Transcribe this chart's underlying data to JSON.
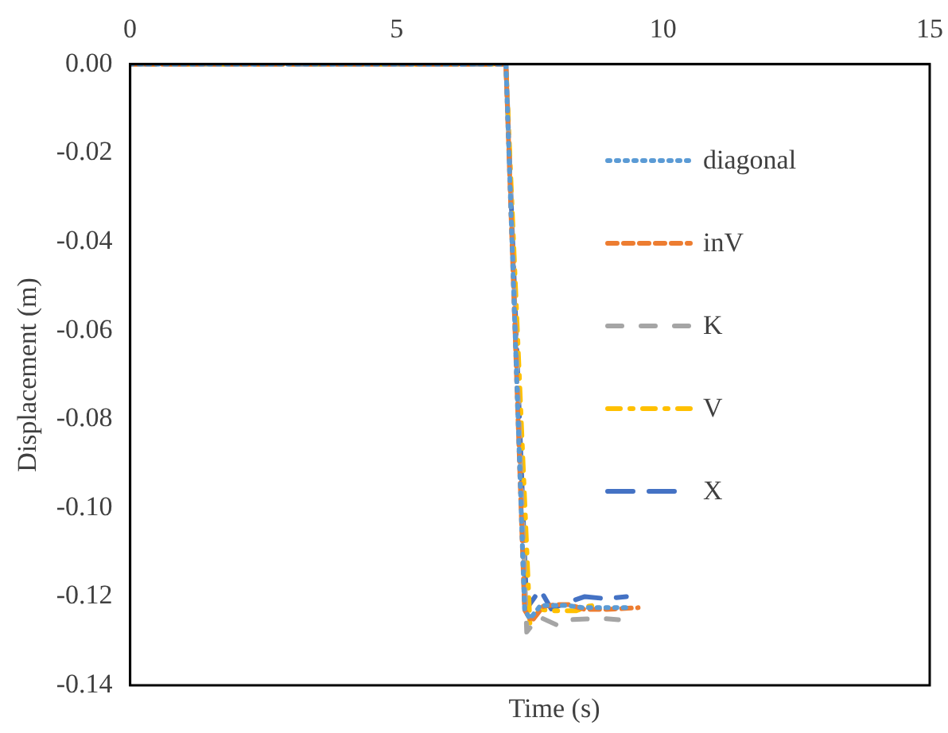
{
  "chart_data": {
    "type": "line",
    "xlabel": "Time (s)",
    "ylabel": "Displacement (m)",
    "xlim": [
      0,
      15
    ],
    "xticks": [
      0,
      5,
      10,
      15
    ],
    "ylim": [
      -0.14,
      0
    ],
    "yticks": [
      {
        "value": 0,
        "label": "0.00"
      },
      {
        "value": -0.02,
        "label": "-0.02"
      },
      {
        "value": -0.04,
        "label": "-0.04"
      },
      {
        "value": -0.06,
        "label": "-0.06"
      },
      {
        "value": -0.08,
        "label": "-0.08"
      },
      {
        "value": -0.1,
        "label": "-0.10"
      },
      {
        "value": -0.12,
        "label": "-0.12"
      },
      {
        "value": -0.14,
        "label": "-0.14"
      }
    ],
    "grid": false,
    "legend": "right",
    "marker": "none",
    "series": [
      {
        "name": "diagonal",
        "color": "#5b9bd5",
        "line_style": "dotted",
        "x": [
          0,
          7.05,
          7.4,
          7.5,
          7.7,
          7.95,
          8.2,
          8.5,
          8.9,
          9.38
        ],
        "values": [
          0,
          0,
          -0.123,
          -0.125,
          -0.122,
          -0.122,
          -0.122,
          -0.1225,
          -0.1225,
          -0.1225
        ]
      },
      {
        "name": "inV",
        "color": "#ed7d31",
        "line_style": "dashed",
        "x": [
          0,
          7.05,
          7.4,
          7.53,
          7.75,
          8.0,
          8.22,
          8.53,
          8.94,
          9.53
        ],
        "values": [
          0,
          0,
          -0.123,
          -0.1256,
          -0.1222,
          -0.1218,
          -0.1218,
          -0.1229,
          -0.1229,
          -0.1225
        ]
      },
      {
        "name": "K",
        "color": "#a5a5a5",
        "line_style": "dashed",
        "x": [
          0,
          7.05,
          7.44,
          7.66,
          8.06,
          8.28,
          8.84,
          9.16
        ],
        "values": [
          0,
          0,
          -0.128,
          -0.1245,
          -0.1267,
          -0.1252,
          -0.1249,
          -0.1252
        ]
      },
      {
        "name": "V",
        "color": "#ffc000",
        "line_style": "dashed",
        "x": [
          0,
          7.05,
          7.5,
          7.69,
          7.9,
          8.37,
          8.59,
          8.78
        ],
        "values": [
          0,
          0,
          -0.126,
          -0.1229,
          -0.1232,
          -0.1232,
          -0.1222,
          -0.1218
        ]
      },
      {
        "name": "X",
        "color": "#4472c4",
        "line_style": "dashed",
        "x": [
          0,
          7.05,
          7.44,
          7.69,
          7.9,
          8.16,
          8.53,
          8.94,
          9.31
        ],
        "values": [
          0,
          0,
          -0.1227,
          -0.1184,
          -0.1228,
          -0.1215,
          -0.12,
          -0.1205,
          -0.12
        ]
      }
    ]
  }
}
